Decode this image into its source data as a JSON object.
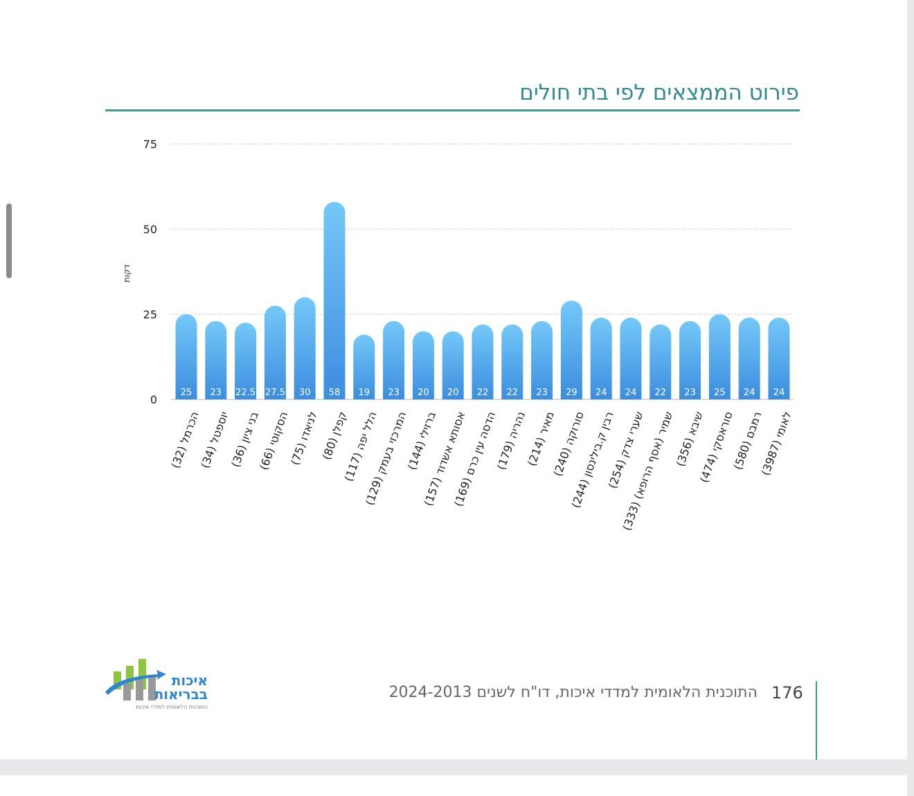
{
  "title": "פירוט הממצאים לפי בתי חולים",
  "footer": {
    "page_number": "176",
    "text": "התוכנית הלאומית למדדי איכות, דו\"ח לשנים 2024-2013"
  },
  "logo": {
    "line1": "איכות",
    "line2": "בבריאות",
    "tagline": "התוכנית הלאומית למדדי איכות"
  },
  "colors": {
    "bar_top": "#74c8f8",
    "bar_bottom": "#3b8ddf",
    "accent": "#2e8a8c"
  },
  "chart_data": {
    "type": "bar",
    "title": "פירוט הממצאים לפי בתי חולים",
    "ylabel": "דקות",
    "xlabel": "",
    "ylim": [
      0,
      75
    ],
    "yticks": [
      0,
      25,
      50,
      75
    ],
    "grid": true,
    "categories": [
      "הכרמל (32)",
      "יוספטל (34)",
      "בני ציון (36)",
      "הסקוטי (66)",
      "לניאדו (75)",
      "קפלן (80)",
      "הלל יפה (117)",
      "המרכזי בעמק (129)",
      "ברזילי (144)",
      "אסותא אשדוד (157)",
      "הדסה עין כרם (169)",
      "נהריה (179)",
      "מאיר (214)",
      "סורוקה (240)",
      "רבין ק.בילינסון (244)",
      "שערי צדק (254)",
      "שמיר (אסף הרופא) (333)",
      "שיבא (356)",
      "סוראסקי (474)",
      "רמבם (580)",
      "לאומי (3987)"
    ],
    "values": [
      25,
      23,
      22.5,
      27.5,
      30,
      58,
      19,
      23,
      20,
      20,
      22,
      22,
      23,
      29,
      24,
      24,
      22,
      23,
      25,
      24,
      24
    ]
  }
}
